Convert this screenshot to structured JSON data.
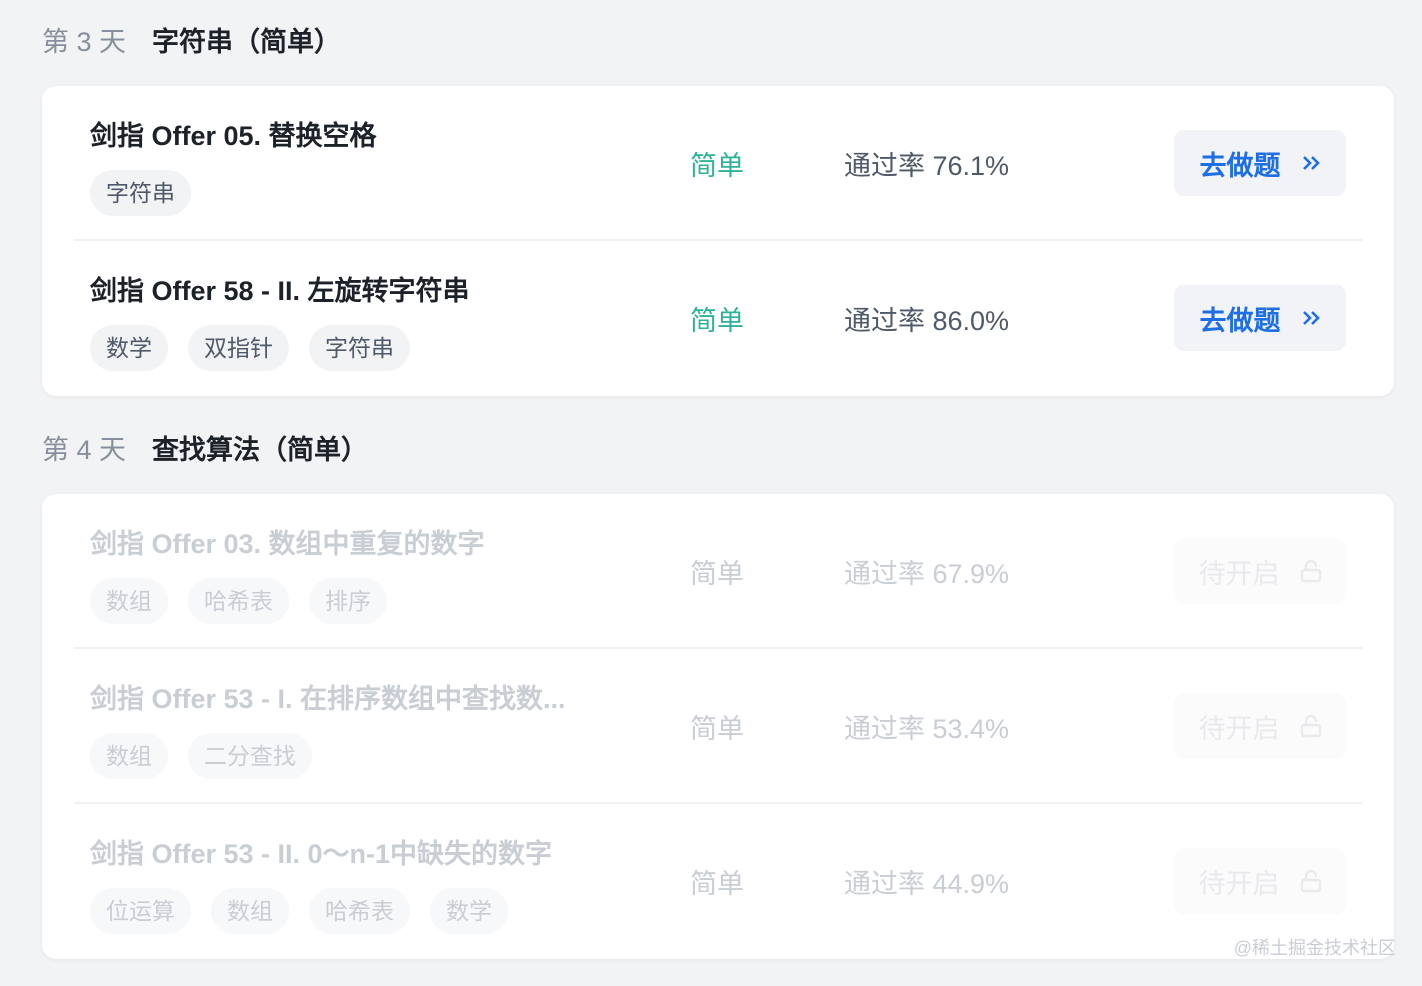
{
  "sections": [
    {
      "day": "第 3 天",
      "topic": "字符串（简单）",
      "problems": [
        {
          "title": "剑指 Offer 05. 替换空格",
          "tags": [
            "字符串"
          ],
          "difficulty": "简单",
          "pass_rate": "通过率 76.1%",
          "action": "去做题",
          "icon": "chevron-double-right-icon",
          "locked": false
        },
        {
          "title": "剑指 Offer 58 - II. 左旋转字符串",
          "tags": [
            "数学",
            "双指针",
            "字符串"
          ],
          "difficulty": "简单",
          "pass_rate": "通过率 86.0%",
          "action": "去做题",
          "icon": "chevron-double-right-icon",
          "locked": false
        }
      ]
    },
    {
      "day": "第 4 天",
      "topic": "查找算法（简单）",
      "problems": [
        {
          "title": "剑指 Offer 03. 数组中重复的数字",
          "tags": [
            "数组",
            "哈希表",
            "排序"
          ],
          "difficulty": "简单",
          "pass_rate": "通过率 67.9%",
          "action": "待开启",
          "icon": "lock-icon",
          "locked": true
        },
        {
          "title": "剑指 Offer 53 - I. 在排序数组中查找数...",
          "tags": [
            "数组",
            "二分查找"
          ],
          "difficulty": "简单",
          "pass_rate": "通过率 53.4%",
          "action": "待开启",
          "icon": "lock-icon",
          "locked": true
        },
        {
          "title": "剑指 Offer 53 - II. 0～n-1中缺失的数字",
          "tags": [
            "位运算",
            "数组",
            "哈希表",
            "数学"
          ],
          "difficulty": "简单",
          "pass_rate": "通过率 44.9%",
          "action": "待开启",
          "icon": "lock-icon",
          "locked": true
        }
      ]
    }
  ],
  "watermark": "@稀土掘金技术社区",
  "colors": {
    "easy": "#2eb39a",
    "accent": "#1e6fe6"
  }
}
